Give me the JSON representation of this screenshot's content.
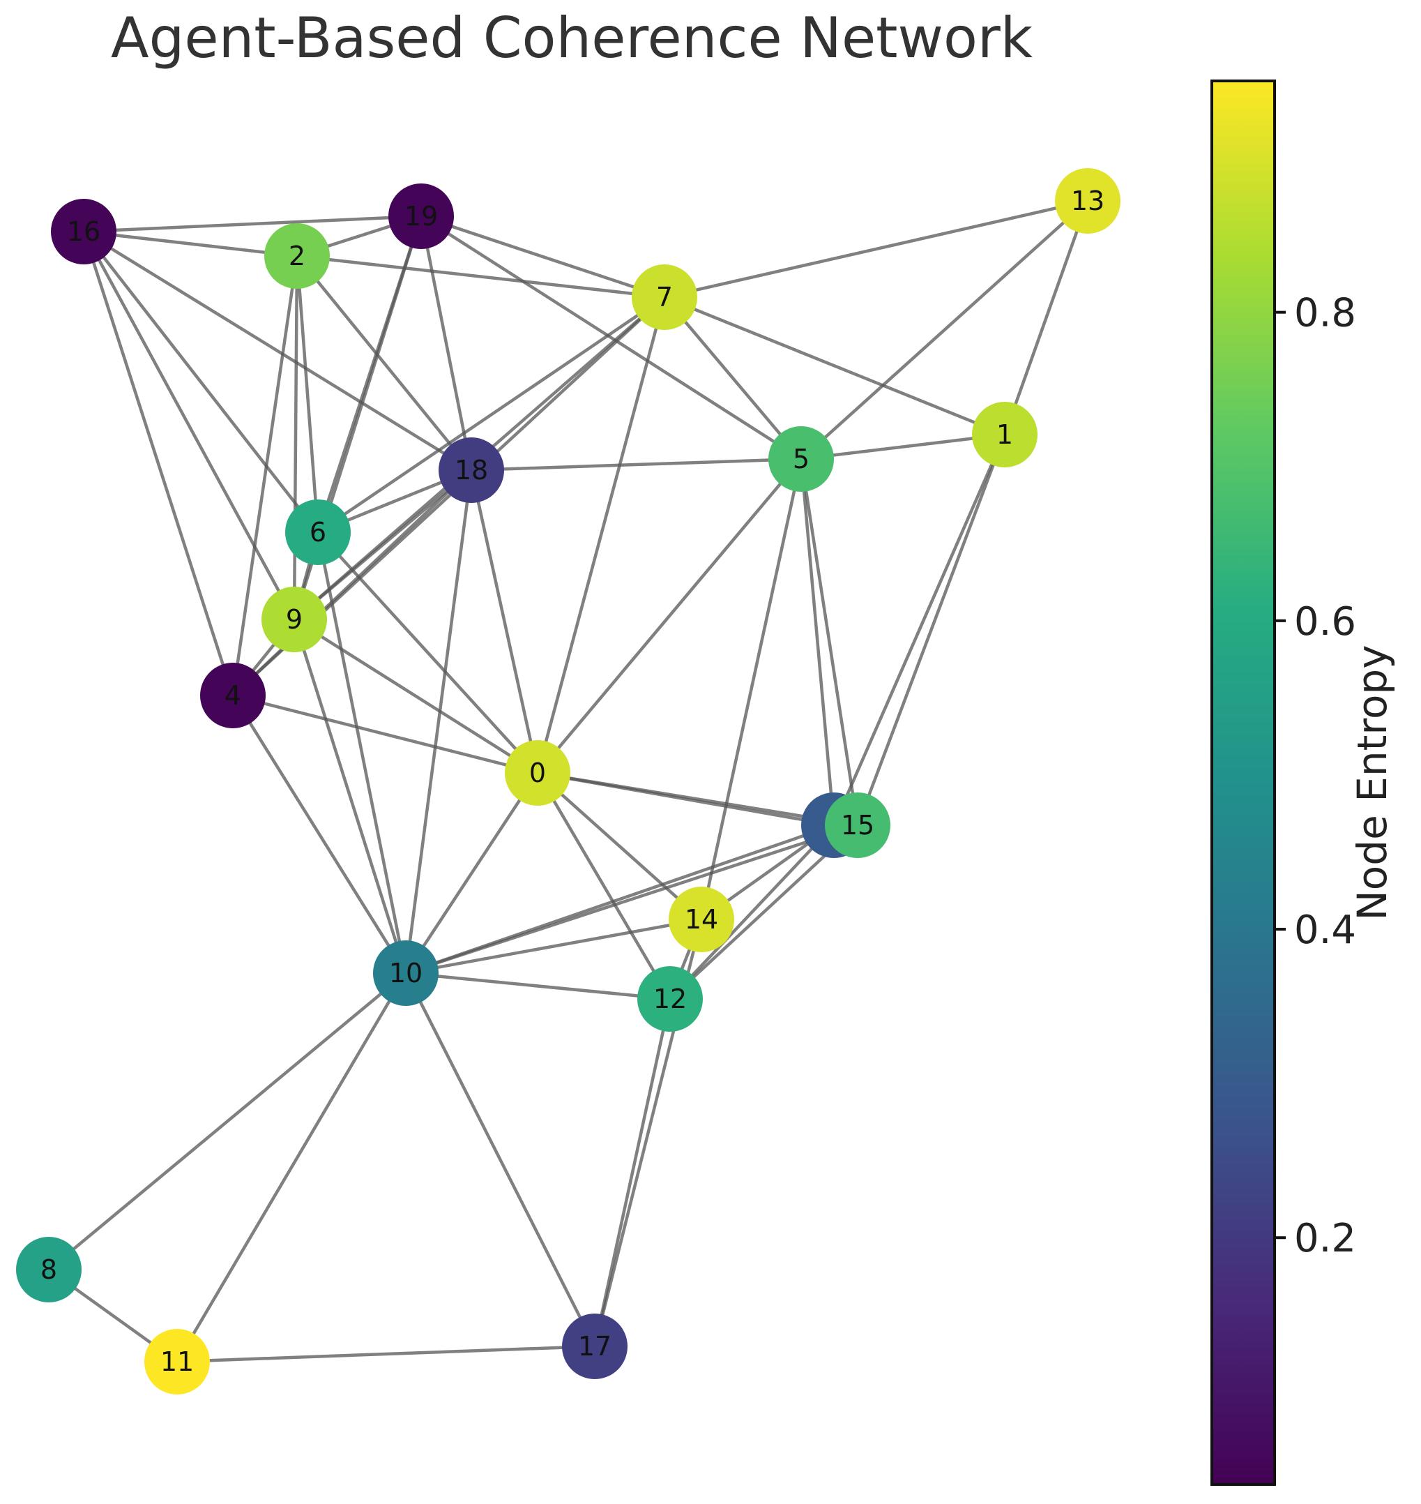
{
  "title": "Agent-Based Coherence Network",
  "colorbar": {
    "label": "Node Entropy",
    "colormap": "viridis",
    "range": [
      0.04,
      0.95
    ],
    "ticks": [
      0.2,
      0.4,
      0.6,
      0.8
    ],
    "tick_labels": [
      "0.2",
      "0.4",
      "0.6",
      "0.8"
    ]
  },
  "nodes": [
    {
      "id": "0",
      "entropy": 0.89
    },
    {
      "id": "1",
      "entropy": 0.86
    },
    {
      "id": "2",
      "entropy": 0.76
    },
    {
      "id": "3",
      "entropy": 0.3
    },
    {
      "id": "4",
      "entropy": 0.05
    },
    {
      "id": "5",
      "entropy": 0.68
    },
    {
      "id": "6",
      "entropy": 0.6
    },
    {
      "id": "7",
      "entropy": 0.88
    },
    {
      "id": "8",
      "entropy": 0.56
    },
    {
      "id": "9",
      "entropy": 0.84
    },
    {
      "id": "10",
      "entropy": 0.43
    },
    {
      "id": "11",
      "entropy": 0.96
    },
    {
      "id": "12",
      "entropy": 0.62
    },
    {
      "id": "13",
      "entropy": 0.91
    },
    {
      "id": "14",
      "entropy": 0.9
    },
    {
      "id": "15",
      "entropy": 0.67
    },
    {
      "id": "16",
      "entropy": 0.05
    },
    {
      "id": "17",
      "entropy": 0.22
    },
    {
      "id": "18",
      "entropy": 0.21
    },
    {
      "id": "19",
      "entropy": 0.05
    }
  ],
  "edges": [
    [
      "16",
      "19"
    ],
    [
      "16",
      "2"
    ],
    [
      "16",
      "18"
    ],
    [
      "16",
      "6"
    ],
    [
      "16",
      "9"
    ],
    [
      "16",
      "4"
    ],
    [
      "19",
      "2"
    ],
    [
      "19",
      "7"
    ],
    [
      "19",
      "5"
    ],
    [
      "19",
      "18"
    ],
    [
      "19",
      "6"
    ],
    [
      "19",
      "9"
    ],
    [
      "2",
      "7"
    ],
    [
      "2",
      "18"
    ],
    [
      "2",
      "6"
    ],
    [
      "2",
      "9"
    ],
    [
      "2",
      "4"
    ],
    [
      "7",
      "13"
    ],
    [
      "7",
      "1"
    ],
    [
      "7",
      "5"
    ],
    [
      "7",
      "6"
    ],
    [
      "7",
      "9"
    ],
    [
      "7",
      "4"
    ],
    [
      "7",
      "0"
    ],
    [
      "13",
      "5"
    ],
    [
      "13",
      "1"
    ],
    [
      "5",
      "1"
    ],
    [
      "5",
      "18"
    ],
    [
      "5",
      "3"
    ],
    [
      "5",
      "15"
    ],
    [
      "5",
      "0"
    ],
    [
      "5",
      "14"
    ],
    [
      "1",
      "3"
    ],
    [
      "1",
      "15"
    ],
    [
      "18",
      "9"
    ],
    [
      "18",
      "4"
    ],
    [
      "18",
      "6"
    ],
    [
      "18",
      "0"
    ],
    [
      "18",
      "10"
    ],
    [
      "6",
      "9"
    ],
    [
      "6",
      "0"
    ],
    [
      "6",
      "10"
    ],
    [
      "9",
      "4"
    ],
    [
      "9",
      "0"
    ],
    [
      "9",
      "10"
    ],
    [
      "4",
      "0"
    ],
    [
      "4",
      "10"
    ],
    [
      "0",
      "3"
    ],
    [
      "0",
      "15"
    ],
    [
      "0",
      "14"
    ],
    [
      "0",
      "12"
    ],
    [
      "0",
      "10"
    ],
    [
      "3",
      "10"
    ],
    [
      "3",
      "14"
    ],
    [
      "3",
      "12"
    ],
    [
      "15",
      "12"
    ],
    [
      "15",
      "10"
    ],
    [
      "14",
      "10"
    ],
    [
      "14",
      "12"
    ],
    [
      "10",
      "12"
    ],
    [
      "10",
      "8"
    ],
    [
      "10",
      "11"
    ],
    [
      "10",
      "17"
    ],
    [
      "12",
      "17"
    ],
    [
      "14",
      "17"
    ],
    [
      "8",
      "11"
    ],
    [
      "11",
      "17"
    ]
  ]
}
